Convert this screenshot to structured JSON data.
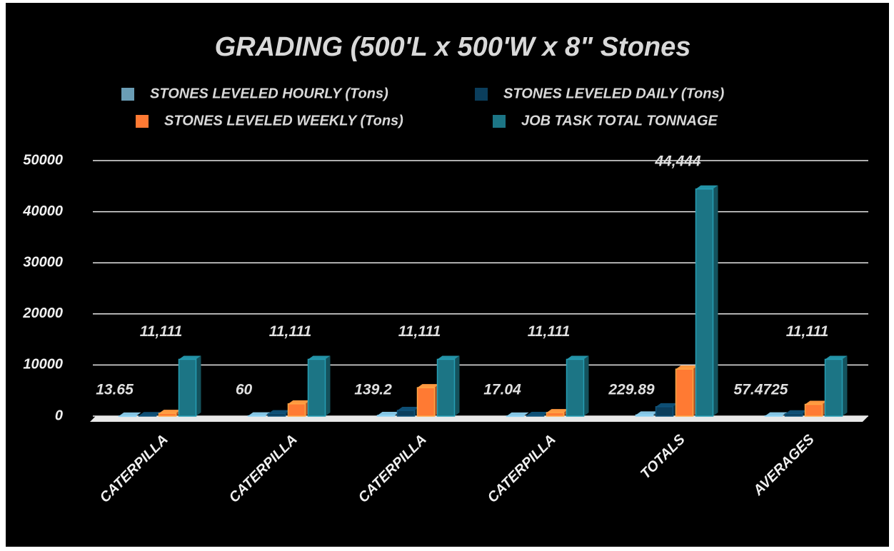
{
  "chart_data": {
    "type": "bar3d",
    "title": "GRADING (500'L x 500'W x 8\" Stones",
    "categories": [
      "CATERPILLA",
      "CATERPILLA",
      "CATERPILLA",
      "CATERPILLA",
      "TOTALS",
      "AVERAGES"
    ],
    "series": [
      {
        "name": "STONES LEVELED HOURLY (Tons)",
        "color": "#6a9db5",
        "data_labels": true,
        "values": [
          13.65,
          60,
          139.2,
          17.04,
          229.89,
          57.4725
        ]
      },
      {
        "name": "STONES LEVELED DAILY (Tons)",
        "color": "#0b3e5c",
        "data_labels": false,
        "values": [
          109.2,
          480,
          1113.6,
          136.32,
          1839.12,
          459.78
        ]
      },
      {
        "name": "STONES LEVELED WEEKLY (Tons)",
        "color": "#ff7a33",
        "data_labels": false,
        "values": [
          546,
          2400,
          5568,
          681.6,
          9195.6,
          2298.9
        ]
      },
      {
        "name": "JOB TASK TOTAL TONNAGE",
        "color": "#1c7585",
        "data_labels": true,
        "values": [
          11111,
          11111,
          11111,
          11111,
          44444,
          11111
        ],
        "value_labels": [
          "11,111",
          "11,111",
          "11,111",
          "11,111",
          "44,444",
          "11,111"
        ]
      }
    ],
    "ylim": [
      0,
      50000
    ],
    "yticks": [
      0,
      10000,
      20000,
      30000,
      40000,
      50000
    ],
    "grid": true
  }
}
